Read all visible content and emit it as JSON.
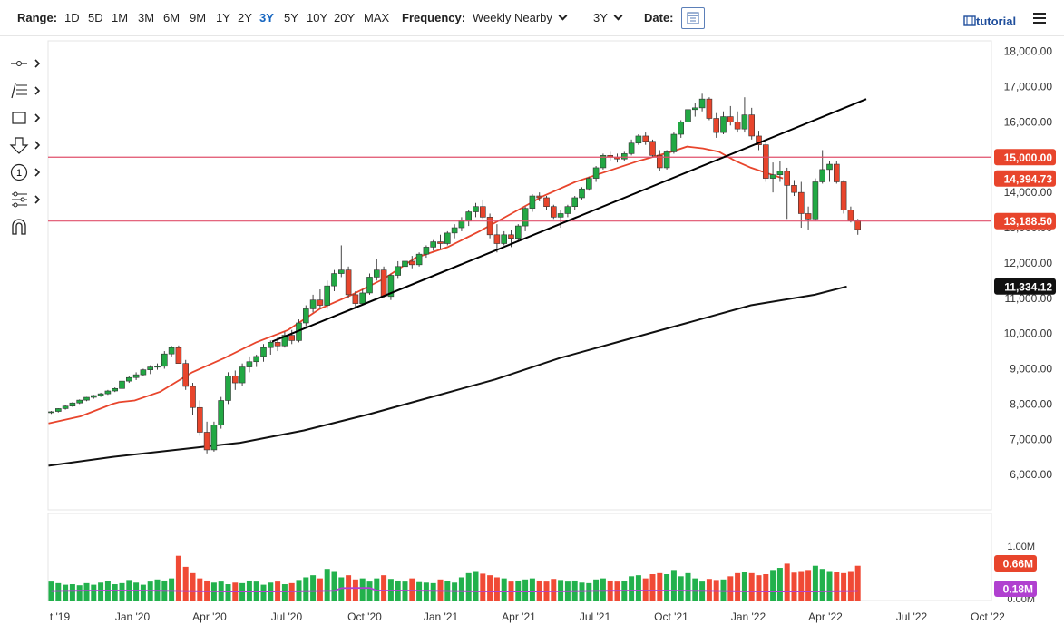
{
  "toolbar": {
    "range_label": "Range:",
    "ranges": [
      "1D",
      "5D",
      "1M",
      "3M",
      "6M",
      "9M",
      "1Y",
      "2Y",
      "3Y",
      "5Y",
      "10Y",
      "20Y",
      "MAX"
    ],
    "active_range": "3Y",
    "frequency_label": "Frequency:",
    "frequency_value": "Weekly Nearby",
    "period_value": "3Y",
    "date_label": "Date:",
    "tutorial_label": "tutorial"
  },
  "side_tools": [
    "crosshair-tool-icon",
    "fibonacci-tool-icon",
    "shape-tool-icon",
    "arrow-tool-icon",
    "counter-tool-icon",
    "pattern-tool-icon",
    "magnet-tool-icon"
  ],
  "colors": {
    "up": "#22a844",
    "down": "#e8452c",
    "ma_short": "#e8452c",
    "ma_long": "#111111",
    "trendline": "#000000",
    "hline": "#e0506b",
    "vol_up": "#22b14c",
    "vol_down": "#f04a35",
    "vol_avg": "#b040d0",
    "price_tag": "#e8452c",
    "ma_tag": "#111111",
    "vol_avg_tag": "#b040d0"
  },
  "chart_data": {
    "type": "candlestick",
    "x_labels": [
      "t '19",
      "Jan '20",
      "Apr '20",
      "Jul '20",
      "Oct '20",
      "Jan '21",
      "Apr '21",
      "Jul '21",
      "Oct '21",
      "Jan '22",
      "Apr '22",
      "Jul '22",
      "Oct '22"
    ],
    "y_ticks": [
      "6,000.00",
      "7,000.00",
      "8,000.00",
      "9,000.00",
      "10,000.00",
      "11,000.00",
      "12,000.00",
      "13,000.00",
      "14,000.00",
      "15,000.00",
      "16,000.00",
      "17,000.00",
      "18,000.00"
    ],
    "ylim": [
      5000,
      18300
    ],
    "volume_ticks": [
      "1.00M",
      "0.00M"
    ],
    "price_tags": [
      "15,000.00",
      "14,394.73",
      "13,188.50",
      "11,334.12"
    ],
    "volume_tags": [
      "0.66M",
      "0.18M"
    ],
    "horizontal_lines": [
      15000,
      13188.5
    ],
    "series": [
      {
        "name": "weekly",
        "values": [
          [
            7760,
            7800,
            7720,
            7780
          ],
          [
            7790,
            7880,
            7760,
            7870
          ],
          [
            7870,
            7960,
            7840,
            7940
          ],
          [
            7940,
            8050,
            7920,
            8030
          ],
          [
            8030,
            8130,
            8000,
            8110
          ],
          [
            8110,
            8200,
            8080,
            8190
          ],
          [
            8190,
            8260,
            8150,
            8240
          ],
          [
            8240,
            8320,
            8200,
            8290
          ],
          [
            8290,
            8400,
            8260,
            8370
          ],
          [
            8370,
            8470,
            8340,
            8440
          ],
          [
            8440,
            8680,
            8400,
            8650
          ],
          [
            8650,
            8800,
            8600,
            8750
          ],
          [
            8750,
            8900,
            8680,
            8830
          ],
          [
            8830,
            9000,
            8800,
            8970
          ],
          [
            8970,
            9100,
            8850,
            9050
          ],
          [
            9050,
            9150,
            8970,
            9070
          ],
          [
            9070,
            9500,
            9000,
            9420
          ],
          [
            9420,
            9650,
            9350,
            9600
          ],
          [
            9600,
            9660,
            9200,
            9150
          ],
          [
            9150,
            9250,
            8400,
            8500
          ],
          [
            8500,
            8600,
            7700,
            7900
          ],
          [
            7900,
            8100,
            7100,
            7200
          ],
          [
            7200,
            7500,
            6600,
            6700
          ],
          [
            6700,
            7500,
            6650,
            7400
          ],
          [
            7400,
            8200,
            7300,
            8100
          ],
          [
            8100,
            8900,
            8000,
            8800
          ],
          [
            8800,
            8950,
            8400,
            8600
          ],
          [
            8600,
            9150,
            8500,
            9050
          ],
          [
            9050,
            9350,
            8900,
            9200
          ],
          [
            9200,
            9400,
            9050,
            9350
          ],
          [
            9350,
            9700,
            9200,
            9600
          ],
          [
            9600,
            9800,
            9400,
            9750
          ],
          [
            9750,
            9900,
            9500,
            9650
          ],
          [
            9650,
            10050,
            9600,
            9950
          ],
          [
            9950,
            10100,
            9700,
            9800
          ],
          [
            9800,
            10400,
            9750,
            10300
          ],
          [
            10300,
            10800,
            10200,
            10700
          ],
          [
            10700,
            11100,
            10600,
            10950
          ],
          [
            10950,
            11250,
            10700,
            10800
          ],
          [
            10800,
            11500,
            10700,
            11350
          ],
          [
            11350,
            11800,
            11200,
            11700
          ],
          [
            11700,
            12500,
            11600,
            11800
          ],
          [
            11800,
            11900,
            11000,
            11100
          ],
          [
            11100,
            11200,
            10700,
            10850
          ],
          [
            10850,
            11250,
            10800,
            11150
          ],
          [
            11150,
            11700,
            11100,
            11600
          ],
          [
            11600,
            12100,
            11500,
            11800
          ],
          [
            11800,
            11900,
            11000,
            11050
          ],
          [
            11050,
            11700,
            10950,
            11650
          ],
          [
            11650,
            12050,
            11550,
            11900
          ],
          [
            11900,
            12100,
            11800,
            12050
          ],
          [
            12050,
            12200,
            11850,
            11950
          ],
          [
            11950,
            12300,
            11900,
            12250
          ],
          [
            12250,
            12500,
            12150,
            12450
          ],
          [
            12450,
            12650,
            12350,
            12600
          ],
          [
            12600,
            12800,
            12400,
            12550
          ],
          [
            12550,
            12900,
            12500,
            12850
          ],
          [
            12850,
            13100,
            12700,
            13000
          ],
          [
            13000,
            13300,
            12900,
            13200
          ],
          [
            13200,
            13500,
            13050,
            13450
          ],
          [
            13450,
            13700,
            13300,
            13600
          ],
          [
            13600,
            13800,
            13250,
            13300
          ],
          [
            13300,
            13400,
            12700,
            12800
          ],
          [
            12800,
            13100,
            12300,
            12550
          ],
          [
            12550,
            12900,
            12500,
            12800
          ],
          [
            12800,
            12950,
            12450,
            12700
          ],
          [
            12700,
            13100,
            12600,
            13050
          ],
          [
            13050,
            13600,
            12900,
            13550
          ],
          [
            13550,
            13950,
            13450,
            13900
          ],
          [
            13900,
            14000,
            13750,
            13850
          ],
          [
            13850,
            13900,
            13500,
            13600
          ],
          [
            13600,
            13650,
            13250,
            13300
          ],
          [
            13300,
            13500,
            13000,
            13400
          ],
          [
            13400,
            13650,
            13300,
            13600
          ],
          [
            13600,
            13900,
            13500,
            13850
          ],
          [
            13850,
            14150,
            13800,
            14100
          ],
          [
            14100,
            14450,
            14050,
            14400
          ],
          [
            14400,
            14750,
            14300,
            14700
          ],
          [
            14700,
            15100,
            14650,
            15050
          ],
          [
            15050,
            15150,
            14900,
            15000
          ],
          [
            15000,
            15100,
            14850,
            14950
          ],
          [
            14950,
            15150,
            14900,
            15100
          ],
          [
            15100,
            15500,
            15050,
            15400
          ],
          [
            15400,
            15650,
            15350,
            15600
          ],
          [
            15600,
            15700,
            15350,
            15450
          ],
          [
            15450,
            15500,
            15000,
            15050
          ],
          [
            15050,
            15200,
            14600,
            14700
          ],
          [
            14700,
            15200,
            14650,
            15150
          ],
          [
            15150,
            15700,
            15100,
            15650
          ],
          [
            15650,
            16050,
            15550,
            16000
          ],
          [
            16000,
            16450,
            15900,
            16350
          ],
          [
            16350,
            16550,
            16150,
            16400
          ],
          [
            16400,
            16800,
            16300,
            16650
          ],
          [
            16650,
            16700,
            16050,
            16100
          ],
          [
            16100,
            16250,
            15550,
            15700
          ],
          [
            15700,
            16300,
            15650,
            16150
          ],
          [
            16150,
            16450,
            15900,
            16000
          ],
          [
            16000,
            16300,
            15700,
            15800
          ],
          [
            15800,
            16700,
            15700,
            16200
          ],
          [
            16200,
            16400,
            15500,
            15600
          ],
          [
            15600,
            15750,
            15200,
            15350
          ],
          [
            15350,
            15500,
            14300,
            14400
          ],
          [
            14400,
            14850,
            14000,
            14500
          ],
          [
            14500,
            14900,
            14300,
            14600
          ],
          [
            14600,
            14700,
            13250,
            14200
          ],
          [
            14200,
            14350,
            13900,
            14000
          ],
          [
            14000,
            14300,
            13000,
            13400
          ],
          [
            13400,
            13600,
            12950,
            13250
          ],
          [
            13250,
            14400,
            13200,
            14300
          ],
          [
            14300,
            15200,
            14250,
            14650
          ],
          [
            14650,
            14900,
            14300,
            14800
          ],
          [
            14800,
            14900,
            14250,
            14300
          ],
          [
            14300,
            14350,
            13400,
            13500
          ],
          [
            13500,
            13600,
            13150,
            13200
          ],
          [
            13200,
            13250,
            12800,
            12950
          ]
        ]
      },
      {
        "name": "ma_short",
        "values": [
          [
            0,
            7450
          ],
          [
            10,
            7650
          ],
          [
            20,
            8000
          ],
          [
            22,
            8050
          ],
          [
            27,
            8100
          ],
          [
            35,
            8350
          ],
          [
            45,
            8900
          ],
          [
            55,
            9300
          ],
          [
            65,
            9750
          ],
          [
            75,
            10100
          ],
          [
            85,
            10700
          ],
          [
            95,
            11100
          ],
          [
            105,
            11550
          ],
          [
            115,
            12150
          ],
          [
            125,
            12450
          ],
          [
            135,
            12900
          ],
          [
            145,
            13400
          ],
          [
            155,
            13900
          ],
          [
            165,
            14300
          ],
          [
            175,
            14600
          ],
          [
            185,
            14900
          ],
          [
            195,
            15150
          ],
          [
            200,
            15300
          ],
          [
            205,
            15250
          ],
          [
            210,
            15150
          ],
          [
            215,
            14900
          ],
          [
            220,
            14700
          ],
          [
            225,
            14550
          ],
          [
            230,
            14400
          ]
        ]
      },
      {
        "name": "ma_long",
        "values": [
          [
            0,
            6250
          ],
          [
            20,
            6500
          ],
          [
            40,
            6700
          ],
          [
            60,
            6900
          ],
          [
            80,
            7250
          ],
          [
            100,
            7700
          ],
          [
            120,
            8200
          ],
          [
            140,
            8700
          ],
          [
            160,
            9300
          ],
          [
            180,
            9800
          ],
          [
            200,
            10300
          ],
          [
            220,
            10800
          ],
          [
            240,
            11100
          ],
          [
            250,
            11334
          ]
        ]
      }
    ],
    "volume": [
      0.36,
      0.33,
      0.3,
      0.31,
      0.29,
      0.33,
      0.3,
      0.34,
      0.37,
      0.31,
      0.33,
      0.39,
      0.34,
      0.3,
      0.36,
      0.4,
      0.38,
      0.42,
      0.85,
      0.64,
      0.52,
      0.42,
      0.38,
      0.34,
      0.36,
      0.31,
      0.34,
      0.33,
      0.38,
      0.36,
      0.3,
      0.34,
      0.36,
      0.31,
      0.33,
      0.39,
      0.44,
      0.48,
      0.42,
      0.6,
      0.56,
      0.44,
      0.48,
      0.4,
      0.42,
      0.36,
      0.42,
      0.48,
      0.41,
      0.38,
      0.36,
      0.42,
      0.35,
      0.34,
      0.33,
      0.4,
      0.37,
      0.34,
      0.44,
      0.52,
      0.56,
      0.51,
      0.48,
      0.44,
      0.42,
      0.36,
      0.38,
      0.4,
      0.42,
      0.38,
      0.36,
      0.41,
      0.39,
      0.36,
      0.38,
      0.34,
      0.33,
      0.4,
      0.42,
      0.38,
      0.36,
      0.37,
      0.46,
      0.48,
      0.42,
      0.5,
      0.52,
      0.5,
      0.58,
      0.46,
      0.52,
      0.42,
      0.36,
      0.41,
      0.39,
      0.4,
      0.46,
      0.52,
      0.55,
      0.52,
      0.48,
      0.5,
      0.58,
      0.62,
      0.7,
      0.53,
      0.56,
      0.58,
      0.66,
      0.6,
      0.56,
      0.54,
      0.52,
      0.56,
      0.66
    ]
  }
}
